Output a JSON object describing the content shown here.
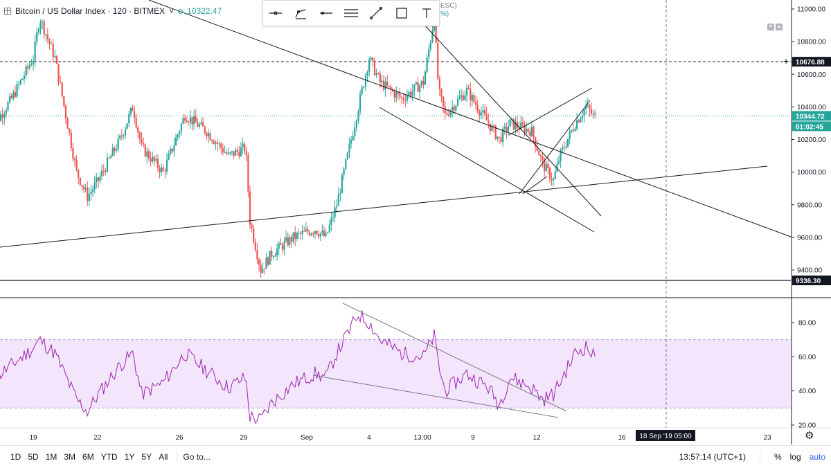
{
  "header": {
    "symbol": "Bitcoin / US Dollar Index · 120 · BITMEX",
    "price": "10322.47",
    "partial_text_1": "ESC)",
    "partial_text_2": "%)"
  },
  "toolbar": {
    "tools": [
      {
        "name": "horizontal-ray-tool",
        "icon": "horizontal-ray-icon"
      },
      {
        "name": "multi-line-tool",
        "icon": "path-icon"
      },
      {
        "name": "horizontal-line-tool",
        "icon": "horizontal-line-icon"
      },
      {
        "name": "parallel-channel-tool",
        "icon": "channel-icon"
      },
      {
        "name": "trend-line-tool",
        "icon": "trend-line-icon"
      },
      {
        "name": "rectangle-tool",
        "icon": "rectangle-icon"
      },
      {
        "name": "text-tool",
        "icon": "text-icon"
      }
    ]
  },
  "price_axis": {
    "ticks": [
      "11000.00",
      "10800.00",
      "10600.00",
      "10400.00",
      "10200.00",
      "10000.00",
      "9800.00",
      "9600.00",
      "9400.00"
    ],
    "tags": [
      {
        "label": "10676.88",
        "value": 10676.88,
        "bg": "#131722",
        "fg": "#ffffff"
      },
      {
        "label": "10344.72",
        "value": 10344.72,
        "bg": "#26a69a",
        "fg": "#ffffff"
      },
      {
        "label": "01:02:45",
        "value": 10300,
        "bg": "#26a69a",
        "fg": "#ffffff"
      },
      {
        "label": "9336.30",
        "value": 9336.3,
        "bg": "#131722",
        "fg": "#ffffff"
      }
    ]
  },
  "rsi_axis": {
    "ticks": [
      "80.00",
      "60.00",
      "40.00",
      "20.00"
    ]
  },
  "time_axis": {
    "ticks": [
      "19",
      "22",
      "26",
      "29",
      "Sep",
      "4",
      "13:00",
      "9",
      "12",
      "16",
      "23"
    ],
    "crosshair_label": "18 Sep '19   05:00"
  },
  "colors": {
    "up": "#26a69a",
    "down": "#ef5350",
    "rsi_line": "#9c27b0",
    "rsi_band": "#f3e5fb",
    "drawing": "#131722",
    "last_price": "#26a69a"
  },
  "bottom_bar": {
    "ranges": [
      "1D",
      "5D",
      "1M",
      "3M",
      "6M",
      "YTD",
      "1Y",
      "5Y",
      "All"
    ],
    "goto": "Go to...",
    "time": "13:57:14 (UTC+1)",
    "percent": "%",
    "log": "log",
    "auto": "auto"
  },
  "chart_data": {
    "type": "candlestick",
    "interval": "120",
    "price_ylim": [
      9300,
      11000
    ],
    "rsi_ylim": [
      20,
      90
    ],
    "rsi_band": [
      30,
      70
    ],
    "last_price": 10344.72,
    "price_series": [
      {
        "day": 17.0,
        "close": 10250
      },
      {
        "day": 18.0,
        "close": 10450
      },
      {
        "day": 19.0,
        "close": 10700
      },
      {
        "day": 19.3,
        "close": 10950
      },
      {
        "day": 20.0,
        "close": 10700
      },
      {
        "day": 21.0,
        "close": 10000
      },
      {
        "day": 21.5,
        "close": 9850
      },
      {
        "day": 22.0,
        "close": 9950
      },
      {
        "day": 23.0,
        "close": 10200
      },
      {
        "day": 23.6,
        "close": 10400
      },
      {
        "day": 24.0,
        "close": 10150
      },
      {
        "day": 25.0,
        "close": 10000
      },
      {
        "day": 26.0,
        "close": 10350
      },
      {
        "day": 27.0,
        "close": 10250
      },
      {
        "day": 28.0,
        "close": 10100
      },
      {
        "day": 28.8,
        "close": 10150
      },
      {
        "day": 29.0,
        "close": 9700
      },
      {
        "day": 29.5,
        "close": 9400
      },
      {
        "day": 30.0,
        "close": 9500
      },
      {
        "day": 31.0,
        "close": 9600
      },
      {
        "day": 32.0,
        "close": 9650
      },
      {
        "day": 32.5,
        "close": 9600
      },
      {
        "day": 33.0,
        "close": 9800
      },
      {
        "day": 34.0,
        "close": 10400
      },
      {
        "day": 34.5,
        "close": 10700
      },
      {
        "day": 35.0,
        "close": 10550
      },
      {
        "day": 36.0,
        "close": 10450
      },
      {
        "day": 37.0,
        "close": 10550
      },
      {
        "day": 37.5,
        "close": 10950
      },
      {
        "day": 37.7,
        "close": 10500
      },
      {
        "day": 38.0,
        "close": 10350
      },
      {
        "day": 39.0,
        "close": 10500
      },
      {
        "day": 40.0,
        "close": 10300
      },
      {
        "day": 40.5,
        "close": 10200
      },
      {
        "day": 41.0,
        "close": 10300
      },
      {
        "day": 42.0,
        "close": 10250
      },
      {
        "day": 42.5,
        "close": 10050
      },
      {
        "day": 43.0,
        "close": 9950
      },
      {
        "day": 43.3,
        "close": 10100
      },
      {
        "day": 44.0,
        "close": 10300
      },
      {
        "day": 44.5,
        "close": 10400
      },
      {
        "day": 45.0,
        "close": 10320
      }
    ],
    "rsi_series": [
      {
        "day": 17.0,
        "value": 45
      },
      {
        "day": 18.0,
        "value": 55
      },
      {
        "day": 19.0,
        "value": 65
      },
      {
        "day": 19.3,
        "value": 70
      },
      {
        "day": 20.0,
        "value": 62
      },
      {
        "day": 21.0,
        "value": 35
      },
      {
        "day": 21.5,
        "value": 28
      },
      {
        "day": 22.0,
        "value": 38
      },
      {
        "day": 23.0,
        "value": 55
      },
      {
        "day": 23.6,
        "value": 62
      },
      {
        "day": 24.0,
        "value": 38
      },
      {
        "day": 25.0,
        "value": 45
      },
      {
        "day": 26.0,
        "value": 62
      },
      {
        "day": 27.0,
        "value": 52
      },
      {
        "day": 28.0,
        "value": 42
      },
      {
        "day": 28.8,
        "value": 48
      },
      {
        "day": 29.0,
        "value": 25
      },
      {
        "day": 29.5,
        "value": 23
      },
      {
        "day": 30.0,
        "value": 33
      },
      {
        "day": 31.0,
        "value": 44
      },
      {
        "day": 32.0,
        "value": 50
      },
      {
        "day": 32.5,
        "value": 48
      },
      {
        "day": 33.0,
        "value": 62
      },
      {
        "day": 34.0,
        "value": 85
      },
      {
        "day": 34.5,
        "value": 80
      },
      {
        "day": 35.0,
        "value": 70
      },
      {
        "day": 36.0,
        "value": 62
      },
      {
        "day": 37.0,
        "value": 60
      },
      {
        "day": 37.5,
        "value": 72
      },
      {
        "day": 37.7,
        "value": 55
      },
      {
        "day": 38.0,
        "value": 40
      },
      {
        "day": 39.0,
        "value": 50
      },
      {
        "day": 40.0,
        "value": 42
      },
      {
        "day": 40.5,
        "value": 32
      },
      {
        "day": 41.0,
        "value": 48
      },
      {
        "day": 42.0,
        "value": 42
      },
      {
        "day": 42.5,
        "value": 35
      },
      {
        "day": 43.0,
        "value": 38
      },
      {
        "day": 43.3,
        "value": 45
      },
      {
        "day": 44.0,
        "value": 62
      },
      {
        "day": 44.5,
        "value": 66
      },
      {
        "day": 45.0,
        "value": 58
      }
    ]
  }
}
